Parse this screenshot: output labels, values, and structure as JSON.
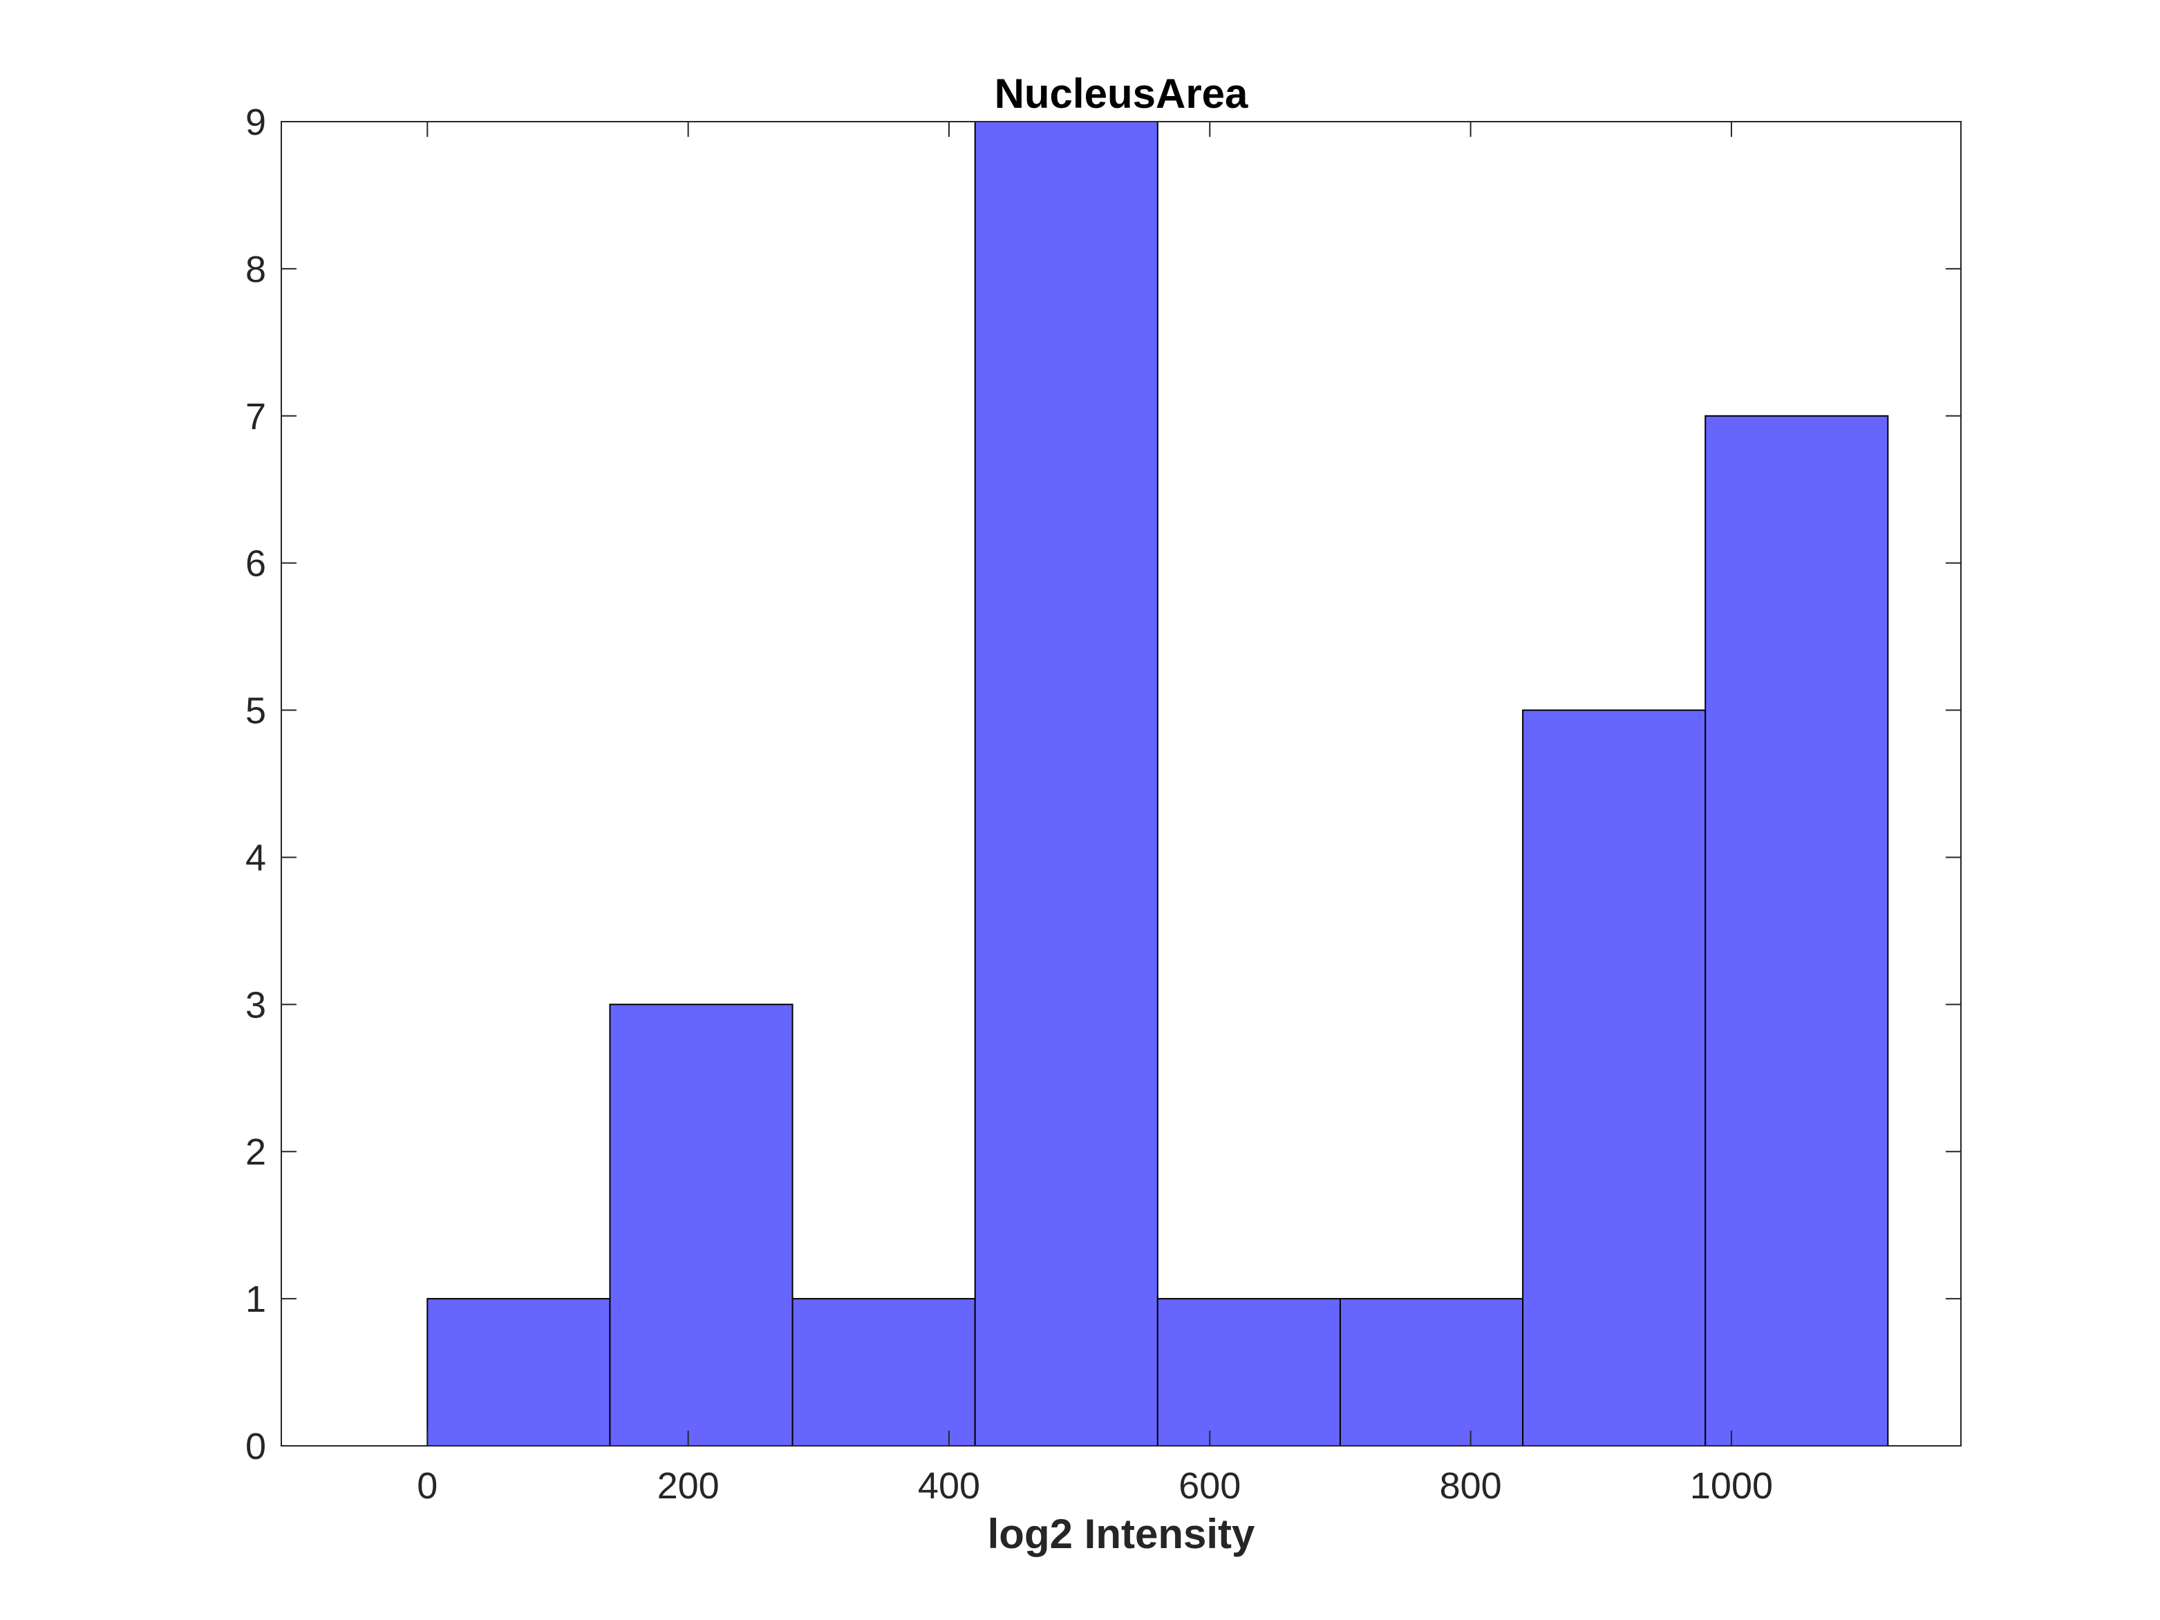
{
  "chart_data": {
    "type": "bar",
    "title": "NucleusArea",
    "xlabel": "log2 Intensity",
    "ylabel": "",
    "bins": [
      {
        "x0": 0,
        "x1": 140,
        "count": 1
      },
      {
        "x0": 140,
        "x1": 280,
        "count": 3
      },
      {
        "x0": 280,
        "x1": 420,
        "count": 1
      },
      {
        "x0": 420,
        "x1": 560,
        "count": 9
      },
      {
        "x0": 560,
        "x1": 700,
        "count": 1
      },
      {
        "x0": 700,
        "x1": 840,
        "count": 1
      },
      {
        "x0": 840,
        "x1": 980,
        "count": 5
      },
      {
        "x0": 980,
        "x1": 1120,
        "count": 7
      }
    ],
    "xlim": [
      -112,
      1176
    ],
    "ylim": [
      0,
      9
    ],
    "xticks": [
      0,
      200,
      400,
      600,
      800,
      1000
    ],
    "yticks": [
      0,
      1,
      2,
      3,
      4,
      5,
      6,
      7,
      8,
      9
    ],
    "xtick_labels": [
      "0",
      "200",
      "400",
      "600",
      "800",
      "1000"
    ],
    "ytick_labels": [
      "0",
      "1",
      "2",
      "3",
      "4",
      "5",
      "6",
      "7",
      "8",
      "9"
    ],
    "grid": false,
    "bar_color": "#6666ff",
    "edge_color": "#000000"
  }
}
